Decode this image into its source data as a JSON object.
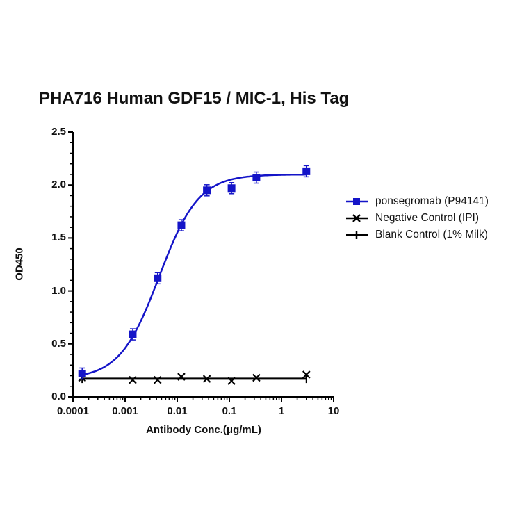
{
  "chart_data": {
    "type": "line",
    "title": "PHA716 Human GDF15 / MIC-1, His Tag",
    "xlabel": "Antibody Conc.(μg/mL)",
    "ylabel": "OD450",
    "xscale": "log",
    "xlim": [
      0.0001,
      10
    ],
    "ylim": [
      0.0,
      2.5
    ],
    "x_ticks": [
      "0.0001",
      "0.001",
      "0.01",
      "0.1",
      "1",
      "10"
    ],
    "y_ticks": [
      "0.0",
      "0.5",
      "1.0",
      "1.5",
      "2.0",
      "2.5"
    ],
    "grid": false,
    "legend_position": "right",
    "series": [
      {
        "name": "ponsegromab (P94141)",
        "color": "#1414c8",
        "marker": "square",
        "fit": "4PL sigmoid",
        "x": [
          0.00015,
          0.0014,
          0.0042,
          0.012,
          0.037,
          0.11,
          0.33,
          3.0
        ],
        "values": [
          0.22,
          0.59,
          1.12,
          1.62,
          1.95,
          1.97,
          2.07,
          2.13
        ]
      },
      {
        "name": "Negative Control (IPI)",
        "color": "#000000",
        "marker": "x",
        "x": [
          0.00015,
          0.0014,
          0.0042,
          0.012,
          0.037,
          0.11,
          0.33,
          3.0
        ],
        "values": [
          0.18,
          0.16,
          0.16,
          0.19,
          0.17,
          0.15,
          0.18,
          0.21
        ]
      },
      {
        "name": "Blank Control (1% Milk)",
        "color": "#000000",
        "marker": "plus",
        "x": [
          0.00015,
          3.0
        ],
        "values": [
          0.17,
          0.17
        ]
      }
    ]
  }
}
